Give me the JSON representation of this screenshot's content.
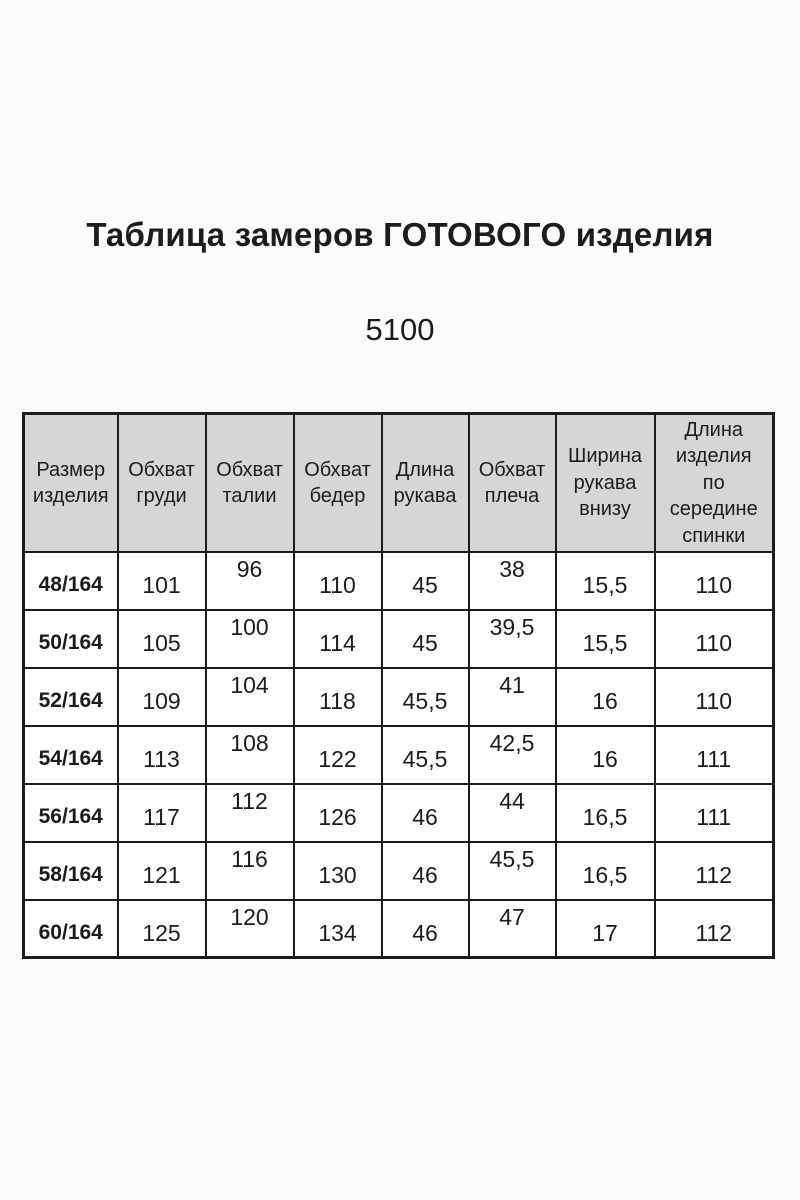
{
  "page": {
    "title": "Таблица замеров ГОТОВОГО изделия",
    "model_number": "5100"
  },
  "style": {
    "header_bg": "#d6d6d6",
    "border_color": "#1c1c1c",
    "page_bg": "#fbfbfb",
    "text_color": "#1c1c1c"
  },
  "table": {
    "headers": [
      {
        "label": "Размер\nизделия"
      },
      {
        "label": "Обхват\nгруди"
      },
      {
        "label": "Обхват\nталии"
      },
      {
        "label": "Обхват\nбедер"
      },
      {
        "label": "Длина\nрукава"
      },
      {
        "label": "Обхват\nплеча"
      },
      {
        "label": "Ширина\nрукава\nвнизу"
      },
      {
        "label": "Длина\nизделия\nпо\nсередине\nспинки"
      }
    ],
    "rows": [
      {
        "size": "48/164",
        "values": [
          "101",
          "96",
          "110",
          "45",
          "38",
          "15,5",
          "110"
        ]
      },
      {
        "size": "50/164",
        "values": [
          "105",
          "100",
          "114",
          "45",
          "39,5",
          "15,5",
          "110"
        ]
      },
      {
        "size": "52/164",
        "values": [
          "109",
          "104",
          "118",
          "45,5",
          "41",
          "16",
          "110"
        ]
      },
      {
        "size": "54/164",
        "values": [
          "113",
          "108",
          "122",
          "45,5",
          "42,5",
          "16",
          "111"
        ]
      },
      {
        "size": "56/164",
        "values": [
          "117",
          "112",
          "126",
          "46",
          "44",
          "16,5",
          "111"
        ]
      },
      {
        "size": "58/164",
        "values": [
          "121",
          "116",
          "130",
          "46",
          "45,5",
          "16,5",
          "112"
        ]
      },
      {
        "size": "60/164",
        "values": [
          "125",
          "120",
          "134",
          "46",
          "47",
          "17",
          "112"
        ]
      }
    ]
  }
}
